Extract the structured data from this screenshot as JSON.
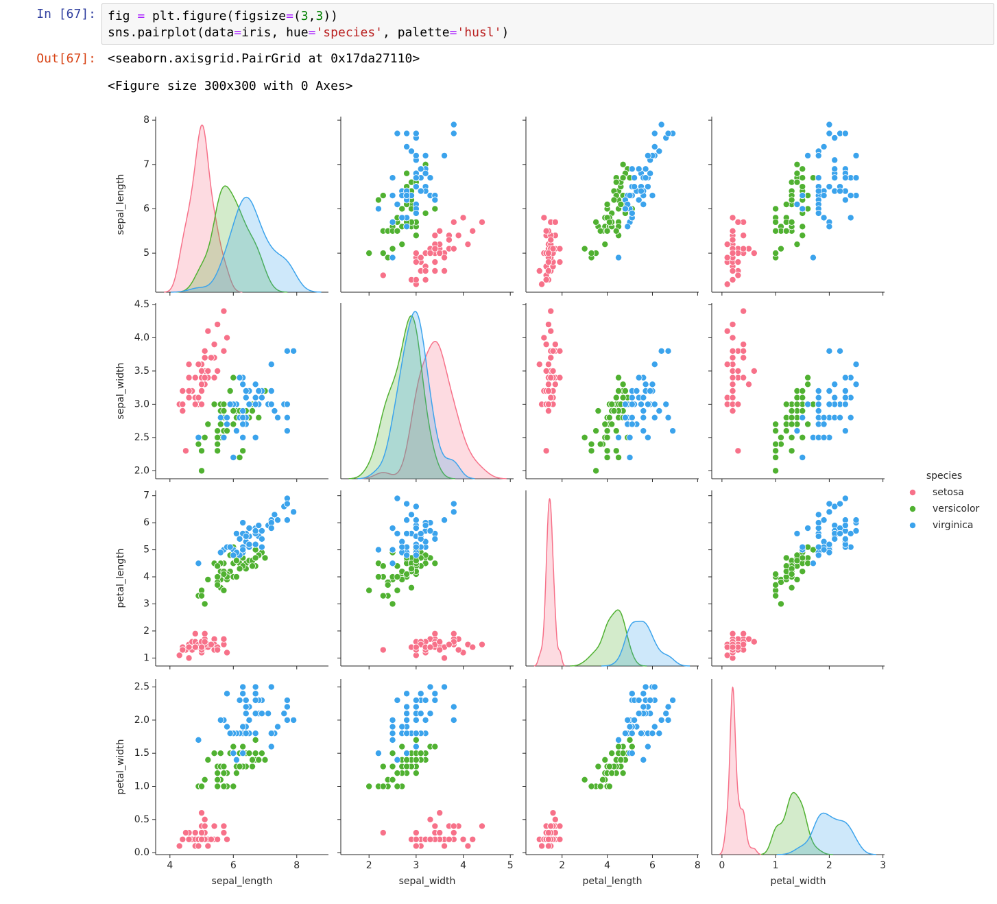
{
  "input": {
    "prompt": "In [67]:",
    "lines": [
      [
        {
          "text": "fig "
        },
        {
          "text": "=",
          "color": "#aa22ff"
        },
        {
          "text": " plt.figure(figsize"
        },
        {
          "text": "=",
          "color": "#aa22ff"
        },
        {
          "text": "("
        },
        {
          "text": "3",
          "color": "#008000"
        },
        {
          "text": ","
        },
        {
          "text": "3",
          "color": "#008000"
        },
        {
          "text": "))"
        }
      ],
      [
        {
          "text": "sns.pairplot(data"
        },
        {
          "text": "=",
          "color": "#aa22ff"
        },
        {
          "text": "iris, hue"
        },
        {
          "text": "=",
          "color": "#aa22ff"
        },
        {
          "text": "'species'",
          "color": "#ba2121"
        },
        {
          "text": ", palette"
        },
        {
          "text": "=",
          "color": "#aa22ff"
        },
        {
          "text": "'husl'",
          "color": "#ba2121"
        },
        {
          "text": ")"
        }
      ]
    ]
  },
  "output": {
    "prompt": "Out[67]:",
    "lines": [
      "<seaborn.axisgrid.PairGrid at 0x17da27110>",
      "<Figure size 300x300 with 0 Axes>"
    ]
  },
  "chart_data": {
    "type": "pairplot",
    "variables": [
      "sepal_length",
      "sepal_width",
      "petal_length",
      "petal_width"
    ],
    "axes": [
      {
        "xlim": [
          3.55,
          9.0
        ],
        "xticks": [
          4,
          6,
          8
        ],
        "ylim": [
          4.12,
          8.08
        ],
        "yticks": [
          5,
          6,
          7,
          8
        ]
      },
      {
        "xlim": [
          1.4,
          5.07
        ],
        "xticks": [
          2,
          3,
          4,
          5
        ],
        "ylim": [
          1.88,
          4.52
        ],
        "yticks": [
          {
            "value": 2,
            "label": "2.0"
          },
          {
            "value": 2.5,
            "label": "2.5"
          },
          {
            "value": 3,
            "label": "3.0"
          },
          {
            "value": 3.5,
            "label": "3.5"
          },
          {
            "value": 4,
            "label": "4.0"
          },
          {
            "value": 4.5,
            "label": "4.5"
          }
        ]
      },
      {
        "xlim": [
          0.4,
          8.05
        ],
        "xticks": [
          2,
          4,
          6,
          8
        ],
        "ylim": [
          0.705,
          7.195
        ],
        "yticks": [
          1,
          2,
          3,
          4,
          5,
          6,
          7
        ]
      },
      {
        "xlim": [
          -0.19,
          3.03
        ],
        "xticks": [
          0,
          1,
          2,
          3
        ],
        "ylim": [
          -0.03,
          2.62
        ],
        "yticks": [
          {
            "value": 0,
            "label": "0.0"
          },
          {
            "value": 0.5,
            "label": "0.5"
          },
          {
            "value": 1,
            "label": "1.0"
          },
          {
            "value": 1.5,
            "label": "1.5"
          },
          {
            "value": 2,
            "label": "2.0"
          },
          {
            "value": 2.5,
            "label": "2.5"
          }
        ]
      }
    ],
    "legend_title": "species",
    "legend_position": "right",
    "series": [
      {
        "name": "setosa",
        "color": "#f77189",
        "values": [
          [
            5.1,
            4.9,
            4.7,
            4.6,
            5.0,
            5.4,
            4.6,
            5.0,
            4.4,
            4.9,
            5.4,
            4.8,
            4.8,
            4.3,
            5.8,
            5.7,
            5.4,
            5.1,
            5.7,
            5.1,
            5.4,
            5.1,
            4.6,
            5.1,
            4.8,
            5.0,
            5.0,
            5.2,
            5.2,
            4.7,
            4.8,
            5.4,
            5.2,
            5.5,
            4.9,
            5.0,
            5.5,
            4.9,
            4.4,
            5.1,
            5.0,
            4.5,
            4.4,
            5.0,
            5.1,
            4.8,
            5.1,
            4.6,
            5.3,
            5.0
          ],
          [
            3.5,
            3.0,
            3.2,
            3.1,
            3.6,
            3.9,
            3.4,
            3.4,
            2.9,
            3.1,
            3.7,
            3.4,
            3.0,
            3.0,
            4.0,
            4.4,
            3.9,
            3.5,
            3.8,
            3.8,
            3.4,
            3.7,
            3.6,
            3.3,
            3.4,
            3.0,
            3.4,
            3.5,
            3.4,
            3.2,
            3.1,
            3.4,
            4.1,
            4.2,
            3.1,
            3.2,
            3.5,
            3.6,
            3.0,
            3.4,
            3.5,
            2.3,
            3.2,
            3.5,
            3.8,
            3.0,
            3.8,
            3.2,
            3.7,
            3.3
          ],
          [
            1.4,
            1.4,
            1.3,
            1.5,
            1.4,
            1.7,
            1.4,
            1.5,
            1.4,
            1.5,
            1.5,
            1.6,
            1.4,
            1.1,
            1.2,
            1.5,
            1.3,
            1.4,
            1.7,
            1.5,
            1.7,
            1.5,
            1.0,
            1.7,
            1.9,
            1.6,
            1.6,
            1.5,
            1.4,
            1.6,
            1.6,
            1.5,
            1.5,
            1.4,
            1.5,
            1.2,
            1.3,
            1.4,
            1.3,
            1.5,
            1.3,
            1.3,
            1.3,
            1.6,
            1.9,
            1.4,
            1.6,
            1.4,
            1.5,
            1.4
          ],
          [
            0.2,
            0.2,
            0.2,
            0.2,
            0.2,
            0.4,
            0.3,
            0.2,
            0.2,
            0.1,
            0.2,
            0.2,
            0.1,
            0.1,
            0.2,
            0.4,
            0.4,
            0.3,
            0.3,
            0.3,
            0.2,
            0.4,
            0.2,
            0.5,
            0.2,
            0.2,
            0.4,
            0.2,
            0.2,
            0.2,
            0.2,
            0.4,
            0.1,
            0.2,
            0.2,
            0.2,
            0.2,
            0.1,
            0.2,
            0.2,
            0.3,
            0.3,
            0.2,
            0.6,
            0.4,
            0.3,
            0.2,
            0.2,
            0.2,
            0.2
          ]
        ]
      },
      {
        "name": "versicolor",
        "color": "#50b131",
        "values": [
          [
            7.0,
            6.4,
            6.9,
            5.5,
            6.5,
            5.7,
            6.3,
            4.9,
            6.6,
            5.2,
            5.0,
            5.9,
            6.0,
            6.1,
            5.6,
            6.7,
            5.6,
            5.8,
            6.2,
            5.6,
            5.9,
            6.1,
            6.3,
            6.1,
            6.4,
            6.6,
            6.8,
            6.7,
            6.0,
            5.7,
            5.5,
            5.5,
            5.8,
            6.0,
            5.4,
            6.0,
            6.7,
            6.3,
            5.6,
            5.5,
            5.5,
            6.1,
            5.8,
            5.0,
            5.6,
            5.7,
            5.7,
            6.2,
            5.1,
            5.7
          ],
          [
            3.2,
            3.2,
            3.1,
            2.3,
            2.8,
            2.8,
            3.3,
            2.4,
            2.9,
            2.7,
            2.0,
            3.0,
            2.2,
            2.9,
            2.9,
            3.1,
            3.0,
            2.7,
            2.2,
            2.5,
            3.2,
            2.8,
            2.5,
            2.8,
            2.9,
            3.0,
            2.8,
            3.0,
            2.9,
            2.6,
            2.4,
            2.4,
            2.7,
            2.7,
            3.0,
            3.4,
            3.1,
            2.3,
            3.0,
            2.5,
            2.6,
            3.0,
            2.6,
            2.3,
            2.7,
            3.0,
            2.9,
            2.9,
            2.5,
            2.8
          ],
          [
            4.7,
            4.5,
            4.9,
            4.0,
            4.6,
            4.5,
            4.7,
            3.3,
            4.6,
            3.9,
            3.5,
            4.2,
            4.0,
            4.7,
            3.6,
            4.4,
            4.5,
            4.1,
            4.5,
            3.9,
            4.8,
            4.0,
            4.9,
            4.7,
            4.3,
            4.4,
            4.8,
            5.0,
            4.5,
            3.5,
            3.8,
            3.7,
            3.9,
            5.1,
            4.5,
            4.5,
            4.7,
            4.4,
            4.1,
            4.0,
            4.4,
            4.6,
            4.0,
            3.3,
            4.2,
            4.2,
            4.2,
            4.3,
            3.0,
            4.1
          ],
          [
            1.4,
            1.5,
            1.5,
            1.3,
            1.5,
            1.3,
            1.6,
            1.0,
            1.3,
            1.4,
            1.0,
            1.5,
            1.0,
            1.4,
            1.3,
            1.4,
            1.5,
            1.0,
            1.5,
            1.1,
            1.8,
            1.3,
            1.5,
            1.2,
            1.3,
            1.4,
            1.4,
            1.7,
            1.5,
            1.0,
            1.1,
            1.0,
            1.2,
            1.6,
            1.5,
            1.6,
            1.5,
            1.3,
            1.3,
            1.3,
            1.2,
            1.4,
            1.2,
            1.0,
            1.3,
            1.2,
            1.3,
            1.3,
            1.1,
            1.3
          ]
        ]
      },
      {
        "name": "virginica",
        "color": "#3ba3ec",
        "values": [
          [
            6.3,
            5.8,
            7.1,
            6.3,
            6.5,
            7.6,
            4.9,
            7.3,
            6.7,
            7.2,
            6.5,
            6.4,
            6.8,
            5.7,
            5.8,
            6.4,
            6.5,
            7.7,
            7.7,
            6.0,
            6.9,
            5.6,
            7.7,
            6.3,
            6.7,
            7.2,
            6.2,
            6.1,
            6.4,
            7.2,
            7.4,
            7.9,
            6.4,
            6.3,
            6.1,
            7.7,
            6.3,
            6.4,
            6.0,
            6.9,
            6.7,
            6.9,
            5.8,
            6.8,
            6.7,
            6.7,
            6.3,
            6.5,
            6.2,
            5.9
          ],
          [
            3.3,
            2.7,
            3.0,
            2.9,
            3.0,
            3.0,
            2.5,
            2.9,
            2.5,
            3.6,
            3.2,
            2.7,
            3.0,
            2.5,
            2.8,
            3.2,
            3.0,
            3.8,
            2.6,
            2.2,
            3.2,
            2.8,
            2.8,
            2.7,
            3.3,
            3.2,
            2.8,
            3.0,
            2.8,
            3.0,
            2.8,
            3.8,
            2.8,
            2.8,
            2.6,
            3.0,
            3.4,
            3.1,
            3.0,
            3.1,
            3.1,
            3.1,
            2.7,
            3.2,
            3.3,
            3.0,
            2.5,
            3.0,
            3.4,
            3.0
          ],
          [
            6.0,
            5.1,
            5.9,
            5.6,
            5.8,
            6.6,
            4.5,
            6.3,
            5.8,
            6.1,
            5.1,
            5.3,
            5.5,
            5.0,
            5.1,
            5.3,
            5.5,
            6.7,
            6.9,
            5.0,
            5.7,
            4.9,
            6.7,
            4.9,
            5.7,
            6.0,
            4.8,
            4.9,
            5.6,
            5.8,
            6.1,
            6.4,
            5.6,
            5.1,
            5.6,
            6.1,
            5.6,
            5.5,
            4.8,
            5.4,
            5.6,
            5.1,
            5.1,
            5.9,
            5.7,
            5.2,
            5.0,
            5.2,
            5.4,
            5.1
          ],
          [
            2.5,
            1.9,
            2.1,
            1.8,
            2.2,
            2.1,
            1.7,
            1.8,
            1.8,
            2.5,
            2.0,
            1.9,
            2.1,
            2.0,
            2.4,
            2.3,
            1.8,
            2.2,
            2.3,
            1.5,
            2.3,
            2.0,
            2.0,
            1.8,
            2.1,
            1.8,
            1.8,
            1.8,
            2.1,
            1.6,
            1.9,
            2.0,
            2.2,
            1.5,
            1.4,
            2.3,
            2.4,
            1.8,
            1.8,
            2.1,
            2.4,
            2.3,
            1.9,
            2.3,
            2.5,
            2.3,
            1.9,
            2.0,
            2.3,
            1.8
          ]
        ]
      }
    ]
  }
}
